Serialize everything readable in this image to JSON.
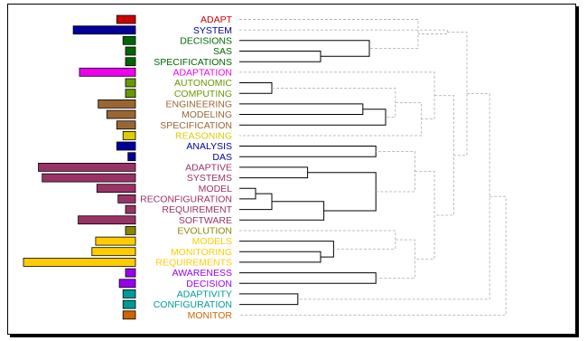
{
  "chart_data": {
    "type": "dendrogram",
    "bar_max": 9.0,
    "terms": [
      {
        "label": "ADAPT",
        "color": "#cc0000",
        "value": 1.5
      },
      {
        "label": "SYSTEM",
        "color": "#000099",
        "value": 5.0
      },
      {
        "label": "DECISIONS",
        "color": "#006600",
        "value": 1.0
      },
      {
        "label": "SAS",
        "color": "#006600",
        "value": 0.8
      },
      {
        "label": "SPECIFICATIONS",
        "color": "#006600",
        "value": 0.8
      },
      {
        "label": "ADAPTATION",
        "color": "#ee00ee",
        "value": 4.5
      },
      {
        "label": "AUTONOMIC",
        "color": "#669900",
        "value": 0.8
      },
      {
        "label": "COMPUTING",
        "color": "#669900",
        "value": 0.8
      },
      {
        "label": "ENGINEERING",
        "color": "#996633",
        "value": 3.0
      },
      {
        "label": "MODELING",
        "color": "#996633",
        "value": 2.3
      },
      {
        "label": "SPECIFICATION",
        "color": "#996633",
        "value": 1.5
      },
      {
        "label": "REASONING",
        "color": "#ddcc00",
        "value": 1.0
      },
      {
        "label": "ANALYSIS",
        "color": "#000099",
        "value": 1.5
      },
      {
        "label": "DAS",
        "color": "#000099",
        "value": 0.6
      },
      {
        "label": "ADAPTIVE",
        "color": "#993366",
        "value": 7.8
      },
      {
        "label": "SYSTEMS",
        "color": "#993366",
        "value": 7.5
      },
      {
        "label": "MODEL",
        "color": "#993366",
        "value": 3.1
      },
      {
        "label": "RECONFIGURATION",
        "color": "#993366",
        "value": 1.4
      },
      {
        "label": "REQUIREMENT",
        "color": "#993366",
        "value": 0.8
      },
      {
        "label": "SOFTWARE",
        "color": "#993366",
        "value": 4.6
      },
      {
        "label": "EVOLUTION",
        "color": "#888800",
        "value": 0.8
      },
      {
        "label": "MODELS",
        "color": "#ffcc00",
        "value": 3.2
      },
      {
        "label": "MONITORING",
        "color": "#ffcc00",
        "value": 3.5
      },
      {
        "label": "REQUIREMENTS",
        "color": "#ffcc00",
        "value": 9.0
      },
      {
        "label": "AWARENESS",
        "color": "#9900ee",
        "value": 0.8
      },
      {
        "label": "DECISION",
        "color": "#9900ee",
        "value": 1.3
      },
      {
        "label": "ADAPTIVITY",
        "color": "#009999",
        "value": 1.0
      },
      {
        "label": "CONFIGURATION",
        "color": "#009999",
        "value": 1.0
      },
      {
        "label": "MONITOR",
        "color": "#cc6600",
        "value": 1.0
      }
    ],
    "merges": [
      {
        "a": "l:3",
        "b": "l:4",
        "h": 0.25,
        "solid": true
      },
      {
        "a": "l:2",
        "b": "n:0",
        "h": 0.4,
        "solid": true
      },
      {
        "a": "l:6",
        "b": "l:7",
        "h": 0.1,
        "solid": true
      },
      {
        "a": "l:8",
        "b": "l:9",
        "h": 0.38,
        "solid": true
      },
      {
        "a": "n:3",
        "b": "l:10",
        "h": 0.45,
        "solid": true
      },
      {
        "a": "l:12",
        "b": "l:13",
        "h": 0.42,
        "solid": true
      },
      {
        "a": "l:14",
        "b": "l:15",
        "h": 0.21,
        "solid": true
      },
      {
        "a": "l:16",
        "b": "l:17",
        "h": 0.05,
        "solid": true
      },
      {
        "a": "n:7",
        "b": "l:18",
        "h": 0.1,
        "solid": true
      },
      {
        "a": "n:8",
        "b": "l:19",
        "h": 0.26,
        "solid": true
      },
      {
        "a": "n:6",
        "b": "n:9",
        "h": 0.42,
        "solid": true
      },
      {
        "a": "l:22",
        "b": "l:23",
        "h": 0.25,
        "solid": true
      },
      {
        "a": "l:21",
        "b": "n:11",
        "h": 0.29,
        "solid": true
      },
      {
        "a": "l:24",
        "b": "l:25",
        "h": 0.42,
        "solid": true
      },
      {
        "a": "l:26",
        "b": "l:27",
        "h": 0.18,
        "solid": true
      },
      {
        "a": "l:0",
        "b": "n:1",
        "h": 0.55,
        "solid": false
      },
      {
        "a": "l:1",
        "b": "n:15",
        "h": 0.64,
        "solid": false
      },
      {
        "a": "n:2",
        "b": "n:4",
        "h": 0.48,
        "solid": false
      },
      {
        "a": "n:17",
        "b": "l:11",
        "h": 0.56,
        "solid": false
      },
      {
        "a": "l:5",
        "b": "n:18",
        "h": 0.6,
        "solid": false
      },
      {
        "a": "n:10",
        "b": "n:5",
        "h": 0.54,
        "solid": false
      },
      {
        "a": "l:20",
        "b": "n:12",
        "h": 0.48,
        "solid": false
      },
      {
        "a": "n:21",
        "b": "n:13",
        "h": 0.54,
        "solid": false
      },
      {
        "a": "n:20",
        "b": "n:22",
        "h": 0.6,
        "solid": false
      },
      {
        "a": "n:19",
        "b": "n:23",
        "h": 0.66,
        "solid": false
      },
      {
        "a": "n:16",
        "b": "n:24",
        "h": 0.7,
        "solid": false
      },
      {
        "a": "n:25",
        "b": "n:14",
        "h": 0.77,
        "solid": false
      },
      {
        "a": "n:26",
        "b": "l:28",
        "h": 0.82,
        "solid": false
      }
    ]
  }
}
